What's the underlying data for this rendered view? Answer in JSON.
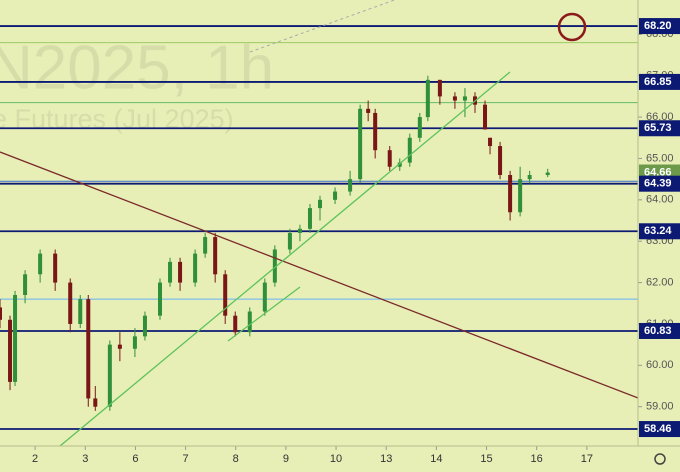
{
  "chart_data": {
    "type": "candlestick",
    "watermark": "N2025, 1h",
    "watermark_subtitle": "e Futures (Jul 2025)",
    "background": "#e7eeb6",
    "up_color": "#2f8f3a",
    "down_color": "#7a1616",
    "xlim": [
      -0.7,
      12.02
    ],
    "ylim": [
      58.05,
      68.83
    ],
    "xticks": [
      {
        "value": 0,
        "label": "2"
      },
      {
        "value": 1,
        "label": "3"
      },
      {
        "value": 2,
        "label": "6"
      },
      {
        "value": 3,
        "label": "7"
      },
      {
        "value": 4,
        "label": "8"
      },
      {
        "value": 5,
        "label": "9"
      },
      {
        "value": 6,
        "label": "10"
      },
      {
        "value": 7,
        "label": "13"
      },
      {
        "value": 8,
        "label": "14"
      },
      {
        "value": 9,
        "label": "15"
      },
      {
        "value": 10,
        "label": "16"
      },
      {
        "value": 11,
        "label": "17"
      }
    ],
    "yticks": [
      {
        "value": 59,
        "label": "59.00"
      },
      {
        "value": 60,
        "label": "60.00"
      },
      {
        "value": 61,
        "label": "61.00"
      },
      {
        "value": 62,
        "label": "62.00"
      },
      {
        "value": 63,
        "label": "63.00"
      },
      {
        "value": 64,
        "label": "64.00"
      },
      {
        "value": 65,
        "label": "65.00"
      },
      {
        "value": 66,
        "label": "66.00"
      },
      {
        "value": 67,
        "label": "67.00"
      },
      {
        "value": 68,
        "label": "68.00"
      }
    ],
    "x": [
      -0.7,
      -0.5,
      -0.4,
      -0.2,
      0.1,
      0.4,
      0.7,
      0.9,
      1.06,
      1.2,
      1.49,
      1.69,
      1.99,
      2.19,
      2.49,
      2.69,
      2.89,
      3.19,
      3.39,
      3.59,
      3.79,
      3.99,
      4.28,
      4.58,
      4.78,
      5.08,
      5.28,
      5.48,
      5.68,
      5.98,
      6.28,
      6.48,
      6.64,
      6.78,
      7.07,
      7.27,
      7.47,
      7.67,
      7.83,
      8.07,
      8.37,
      8.57,
      8.77,
      8.97,
      9.07,
      9.27,
      9.47,
      9.67,
      9.86,
      10.22
    ],
    "open": [
      61.4,
      61.1,
      59.6,
      61.7,
      62.2,
      62.7,
      62.0,
      61.0,
      61.6,
      59.2,
      59.0,
      60.5,
      60.4,
      60.7,
      61.2,
      62.0,
      62.5,
      62.0,
      62.7,
      63.1,
      62.2,
      61.2,
      60.8,
      61.3,
      62.0,
      62.8,
      63.2,
      63.3,
      63.8,
      64.0,
      64.2,
      64.5,
      66.2,
      66.1,
      65.2,
      64.8,
      64.9,
      65.5,
      66.0,
      66.9,
      66.5,
      66.4,
      66.5,
      66.3,
      65.5,
      65.3,
      64.6,
      63.7,
      64.5,
      64.6
    ],
    "high": [
      61.6,
      61.2,
      61.8,
      62.3,
      62.8,
      62.8,
      62.1,
      61.7,
      61.7,
      59.5,
      60.6,
      60.8,
      60.9,
      61.3,
      62.1,
      62.6,
      62.6,
      62.8,
      63.2,
      63.2,
      62.3,
      61.3,
      61.4,
      62.1,
      62.9,
      63.3,
      63.4,
      63.9,
      64.1,
      64.3,
      64.7,
      66.3,
      66.4,
      66.2,
      65.3,
      65.0,
      65.6,
      66.1,
      67.0,
      66.9,
      66.6,
      66.7,
      66.6,
      66.4,
      65.5,
      65.4,
      64.7,
      64.8,
      64.7,
      64.75
    ],
    "low": [
      60.9,
      59.4,
      59.5,
      61.5,
      62.0,
      61.8,
      60.8,
      60.9,
      59.0,
      58.9,
      58.9,
      60.1,
      60.2,
      60.6,
      61.1,
      61.9,
      61.8,
      61.9,
      62.6,
      62.0,
      61.0,
      60.7,
      60.7,
      61.2,
      61.9,
      62.7,
      63.0,
      63.2,
      63.5,
      63.9,
      64.1,
      64.4,
      65.9,
      65.0,
      64.7,
      64.7,
      64.8,
      65.4,
      65.9,
      66.3,
      66.2,
      66.0,
      66.1,
      65.7,
      65.1,
      64.5,
      63.5,
      63.6,
      64.4,
      64.55
    ],
    "close": [
      61.1,
      59.6,
      61.7,
      62.2,
      62.7,
      62.0,
      61.0,
      61.6,
      59.2,
      59.0,
      60.5,
      60.4,
      60.7,
      61.2,
      62.0,
      62.5,
      62.0,
      62.7,
      63.1,
      62.2,
      61.2,
      60.8,
      61.3,
      62.0,
      62.8,
      63.2,
      63.3,
      63.8,
      64.0,
      64.2,
      64.5,
      66.2,
      66.1,
      65.2,
      64.8,
      64.9,
      65.5,
      66.0,
      66.9,
      66.5,
      66.4,
      66.5,
      66.3,
      65.7,
      65.3,
      64.6,
      63.7,
      64.5,
      64.6,
      64.66
    ],
    "minor_levels": [
      {
        "value": 67.8,
        "color": "#9ccc65"
      },
      {
        "value": 66.35,
        "color": "#66bb6a"
      },
      {
        "value": 64.45,
        "color": "#3f6fd0"
      },
      {
        "value": 61.6,
        "color": "#64b5f6"
      }
    ],
    "levels": [
      {
        "value": 68.2,
        "label": "68.20",
        "color": "#0d1a73"
      },
      {
        "value": 66.85,
        "label": "66.85",
        "color": "#0d1a73"
      },
      {
        "value": 65.73,
        "label": "65.73",
        "color": "#0d1a73"
      },
      {
        "value": 64.66,
        "label": "64.66",
        "color": "#6c9a4a",
        "current": true
      },
      {
        "value": 64.39,
        "label": "64.39",
        "color": "#0d1a73"
      },
      {
        "value": 63.24,
        "label": "63.24",
        "color": "#0d1a73"
      },
      {
        "value": 60.83,
        "label": "60.83",
        "color": "#0d1a73"
      },
      {
        "value": 58.46,
        "label": "58.46",
        "color": "#0d1a73"
      }
    ]
  }
}
